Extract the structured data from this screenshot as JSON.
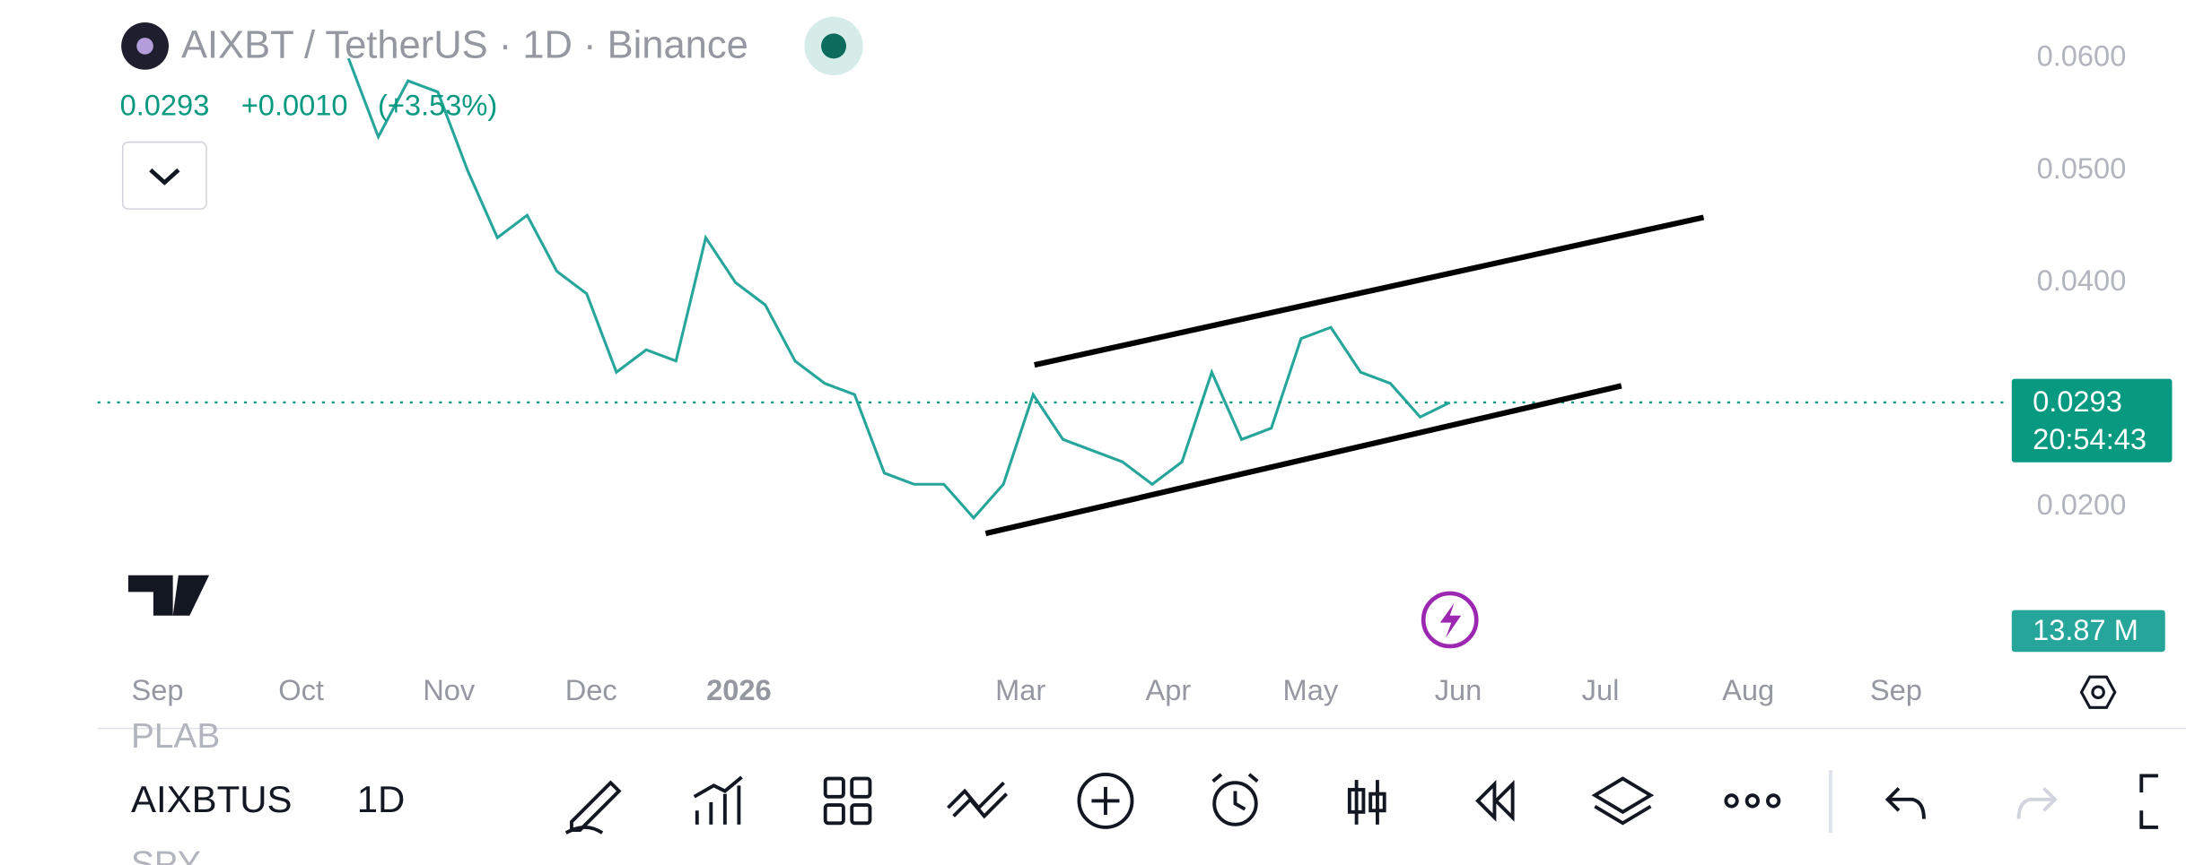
{
  "header": {
    "title": "AIXBT / TetherUS · 1D · Binance",
    "last": "0.0293",
    "change": "+0.0010",
    "change_pct": "(+3.53%)"
  },
  "chart_data": {
    "type": "line",
    "series": [
      {
        "name": "AIXBTUS",
        "color": "#26a69a",
        "values": [
          0.06,
          0.053,
          0.058,
          0.057,
          0.05,
          0.044,
          0.046,
          0.041,
          0.039,
          0.032,
          0.034,
          0.033,
          0.044,
          0.04,
          0.038,
          0.033,
          0.031,
          0.03,
          0.023,
          0.022,
          0.022,
          0.019,
          0.022,
          0.03,
          0.026,
          0.025,
          0.024,
          0.022,
          0.024,
          0.032,
          0.026,
          0.027,
          0.035,
          0.036,
          0.032,
          0.031,
          0.028,
          0.0293
        ]
      }
    ],
    "ylim": [
      0.0068,
      0.0652
    ],
    "yticks": [
      {
        "value": 0.06,
        "label": "0.0600"
      },
      {
        "value": 0.05,
        "label": "0.0500"
      },
      {
        "value": 0.04,
        "label": "0.0400"
      },
      {
        "value": 0.02,
        "label": "0.0200"
      }
    ],
    "xticks": [
      "Sep",
      "Oct",
      "Nov",
      "Dec",
      "2026",
      "Mar",
      "Apr",
      "May",
      "Jun",
      "Jul",
      "Aug",
      "Sep"
    ]
  },
  "price_tag": {
    "price": 0.0293,
    "price_label": "0.0293",
    "countdown": "20:54:43"
  },
  "volume_tag": "13.87 M",
  "bottom_bar": {
    "watchlist": [
      "PLAB",
      "AIXBTUS",
      "SPY"
    ],
    "interval": "1D"
  }
}
